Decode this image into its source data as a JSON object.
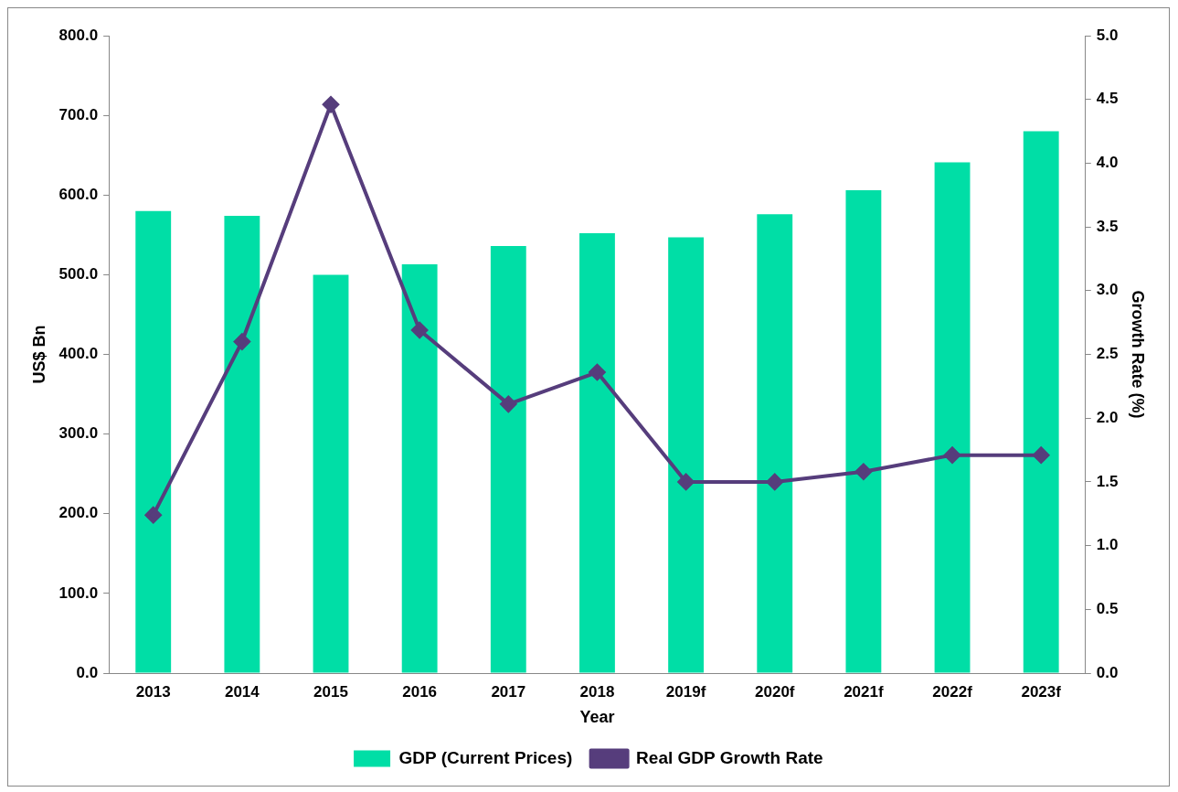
{
  "chart_data": {
    "type": "bar",
    "xlabel": "Year",
    "ylabel": "US$ Bn",
    "y2label": "Growth Rate (%)",
    "categories": [
      "2013",
      "2014",
      "2015",
      "2016",
      "2017",
      "2018",
      "2019f",
      "2020f",
      "2021f",
      "2022f",
      "2023f"
    ],
    "series": [
      {
        "name": "GDP (Current Prices)",
        "color": "#00dea6",
        "values": [
          580,
          574,
          500,
          513,
          536,
          552,
          547,
          576,
          606,
          641,
          680
        ]
      },
      {
        "name": "Real GDP Growth Rate",
        "type": "line",
        "axis": "y2",
        "color": "#563d7c",
        "marker": "diamond",
        "values": [
          1.24,
          2.6,
          4.46,
          2.69,
          2.11,
          2.36,
          1.5,
          1.5,
          1.58,
          1.71,
          1.71
        ]
      }
    ],
    "ylim": [
      0,
      800
    ],
    "yticks": [
      {
        "value": 0,
        "label": "0.0"
      },
      {
        "value": 100,
        "label": "100.0"
      },
      {
        "value": 200,
        "label": "200.0"
      },
      {
        "value": 300,
        "label": "300.0"
      },
      {
        "value": 400,
        "label": "400.0"
      },
      {
        "value": 500,
        "label": "500.0"
      },
      {
        "value": 600,
        "label": "600.0"
      },
      {
        "value": 700,
        "label": "700.0"
      },
      {
        "value": 800,
        "label": "800.0"
      }
    ],
    "y2lim": [
      0,
      5
    ],
    "y2ticks": [
      {
        "value": 0,
        "label": "0.0"
      },
      {
        "value": 0.5,
        "label": "0.5"
      },
      {
        "value": 1,
        "label": "1.0"
      },
      {
        "value": 1.5,
        "label": "1.5"
      },
      {
        "value": 2,
        "label": "2.0"
      },
      {
        "value": 2.5,
        "label": "2.5"
      },
      {
        "value": 3,
        "label": "3.0"
      },
      {
        "value": 3.5,
        "label": "3.5"
      },
      {
        "value": 4,
        "label": "4.0"
      },
      {
        "value": 4.5,
        "label": "4.5"
      },
      {
        "value": 5,
        "label": "5.0"
      }
    ],
    "grid": false,
    "legend": "bottom"
  }
}
